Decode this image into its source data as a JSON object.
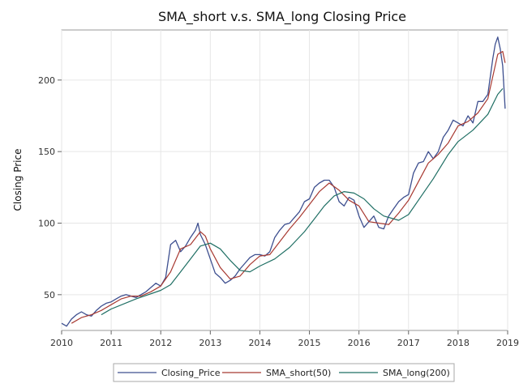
{
  "chart_data": {
    "type": "line",
    "title": "SMA_short v.s. SMA_long Closing Price",
    "xlabel": "",
    "ylabel": "Closing Price",
    "xlim": [
      2010.0,
      2019.0
    ],
    "ylim": [
      25,
      235
    ],
    "x_ticks": [
      2010,
      2011,
      2012,
      2013,
      2014,
      2015,
      2016,
      2017,
      2018,
      2019
    ],
    "y_ticks": [
      50,
      100,
      150,
      200
    ],
    "grid": true,
    "legend_position": "bottom",
    "colors": {
      "Closing_Price": "#3d4f8f",
      "SMA_short(50)": "#a83a32",
      "SMA_long(200)": "#1f6f64"
    },
    "series": [
      {
        "name": "Closing_Price",
        "points": [
          [
            2010.0,
            30
          ],
          [
            2010.1,
            28
          ],
          [
            2010.2,
            33
          ],
          [
            2010.3,
            36
          ],
          [
            2010.4,
            38
          ],
          [
            2010.5,
            36
          ],
          [
            2010.6,
            35
          ],
          [
            2010.7,
            39
          ],
          [
            2010.8,
            42
          ],
          [
            2010.9,
            44
          ],
          [
            2011.0,
            45
          ],
          [
            2011.1,
            47
          ],
          [
            2011.2,
            49
          ],
          [
            2011.3,
            50
          ],
          [
            2011.4,
            49
          ],
          [
            2011.5,
            48
          ],
          [
            2011.6,
            50
          ],
          [
            2011.7,
            52
          ],
          [
            2011.8,
            55
          ],
          [
            2011.9,
            58
          ],
          [
            2012.0,
            56
          ],
          [
            2012.1,
            62
          ],
          [
            2012.2,
            85
          ],
          [
            2012.3,
            88
          ],
          [
            2012.4,
            80
          ],
          [
            2012.5,
            84
          ],
          [
            2012.6,
            90
          ],
          [
            2012.7,
            95
          ],
          [
            2012.75,
            100
          ],
          [
            2012.8,
            92
          ],
          [
            2012.9,
            85
          ],
          [
            2013.0,
            75
          ],
          [
            2013.1,
            65
          ],
          [
            2013.2,
            62
          ],
          [
            2013.3,
            58
          ],
          [
            2013.4,
            60
          ],
          [
            2013.5,
            63
          ],
          [
            2013.6,
            68
          ],
          [
            2013.7,
            72
          ],
          [
            2013.8,
            76
          ],
          [
            2013.9,
            78
          ],
          [
            2014.0,
            78
          ],
          [
            2014.1,
            77
          ],
          [
            2014.2,
            80
          ],
          [
            2014.3,
            90
          ],
          [
            2014.4,
            95
          ],
          [
            2014.5,
            99
          ],
          [
            2014.6,
            100
          ],
          [
            2014.7,
            104
          ],
          [
            2014.8,
            108
          ],
          [
            2014.9,
            115
          ],
          [
            2015.0,
            117
          ],
          [
            2015.1,
            125
          ],
          [
            2015.2,
            128
          ],
          [
            2015.3,
            130
          ],
          [
            2015.4,
            130
          ],
          [
            2015.5,
            125
          ],
          [
            2015.6,
            115
          ],
          [
            2015.7,
            112
          ],
          [
            2015.8,
            118
          ],
          [
            2015.9,
            116
          ],
          [
            2016.0,
            105
          ],
          [
            2016.1,
            97
          ],
          [
            2016.2,
            101
          ],
          [
            2016.3,
            105
          ],
          [
            2016.4,
            97
          ],
          [
            2016.5,
            96
          ],
          [
            2016.6,
            105
          ],
          [
            2016.7,
            110
          ],
          [
            2016.8,
            115
          ],
          [
            2016.9,
            118
          ],
          [
            2017.0,
            120
          ],
          [
            2017.1,
            135
          ],
          [
            2017.2,
            142
          ],
          [
            2017.3,
            143
          ],
          [
            2017.4,
            150
          ],
          [
            2017.5,
            145
          ],
          [
            2017.6,
            150
          ],
          [
            2017.7,
            160
          ],
          [
            2017.8,
            165
          ],
          [
            2017.9,
            172
          ],
          [
            2018.0,
            170
          ],
          [
            2018.1,
            168
          ],
          [
            2018.2,
            175
          ],
          [
            2018.3,
            170
          ],
          [
            2018.4,
            185
          ],
          [
            2018.5,
            185
          ],
          [
            2018.6,
            190
          ],
          [
            2018.7,
            215
          ],
          [
            2018.75,
            225
          ],
          [
            2018.8,
            230
          ],
          [
            2018.85,
            222
          ],
          [
            2018.9,
            210
          ],
          [
            2018.95,
            180
          ]
        ]
      },
      {
        "name": "SMA_short(50)",
        "points": [
          [
            2010.2,
            30
          ],
          [
            2010.4,
            34
          ],
          [
            2010.6,
            36
          ],
          [
            2010.8,
            39
          ],
          [
            2011.0,
            43
          ],
          [
            2011.2,
            47
          ],
          [
            2011.4,
            49
          ],
          [
            2011.6,
            49
          ],
          [
            2011.8,
            52
          ],
          [
            2012.0,
            56
          ],
          [
            2012.2,
            66
          ],
          [
            2012.4,
            82
          ],
          [
            2012.6,
            85
          ],
          [
            2012.8,
            94
          ],
          [
            2012.9,
            91
          ],
          [
            2013.0,
            82
          ],
          [
            2013.2,
            69
          ],
          [
            2013.4,
            61
          ],
          [
            2013.6,
            63
          ],
          [
            2013.8,
            71
          ],
          [
            2014.0,
            77
          ],
          [
            2014.2,
            78
          ],
          [
            2014.4,
            87
          ],
          [
            2014.6,
            96
          ],
          [
            2014.8,
            104
          ],
          [
            2015.0,
            113
          ],
          [
            2015.2,
            122
          ],
          [
            2015.4,
            128
          ],
          [
            2015.6,
            123
          ],
          [
            2015.8,
            116
          ],
          [
            2016.0,
            112
          ],
          [
            2016.2,
            101
          ],
          [
            2016.4,
            100
          ],
          [
            2016.6,
            99
          ],
          [
            2016.8,
            107
          ],
          [
            2017.0,
            116
          ],
          [
            2017.2,
            129
          ],
          [
            2017.4,
            142
          ],
          [
            2017.6,
            148
          ],
          [
            2017.8,
            156
          ],
          [
            2018.0,
            168
          ],
          [
            2018.2,
            171
          ],
          [
            2018.4,
            177
          ],
          [
            2018.6,
            187
          ],
          [
            2018.8,
            218
          ],
          [
            2018.9,
            220
          ],
          [
            2018.95,
            212
          ]
        ]
      },
      {
        "name": "SMA_long(200)",
        "points": [
          [
            2010.8,
            36
          ],
          [
            2011.0,
            40
          ],
          [
            2011.5,
            47
          ],
          [
            2012.0,
            53
          ],
          [
            2012.2,
            57
          ],
          [
            2012.4,
            66
          ],
          [
            2012.6,
            75
          ],
          [
            2012.8,
            84
          ],
          [
            2013.0,
            86
          ],
          [
            2013.2,
            82
          ],
          [
            2013.4,
            74
          ],
          [
            2013.6,
            67
          ],
          [
            2013.8,
            66
          ],
          [
            2014.0,
            70
          ],
          [
            2014.3,
            75
          ],
          [
            2014.6,
            83
          ],
          [
            2014.9,
            94
          ],
          [
            2015.1,
            103
          ],
          [
            2015.3,
            112
          ],
          [
            2015.5,
            119
          ],
          [
            2015.7,
            122
          ],
          [
            2015.9,
            121
          ],
          [
            2016.1,
            117
          ],
          [
            2016.3,
            110
          ],
          [
            2016.5,
            105
          ],
          [
            2016.8,
            102
          ],
          [
            2017.0,
            106
          ],
          [
            2017.2,
            116
          ],
          [
            2017.5,
            131
          ],
          [
            2017.8,
            148
          ],
          [
            2018.0,
            157
          ],
          [
            2018.3,
            165
          ],
          [
            2018.6,
            176
          ],
          [
            2018.8,
            190
          ],
          [
            2018.9,
            194
          ]
        ]
      }
    ]
  }
}
